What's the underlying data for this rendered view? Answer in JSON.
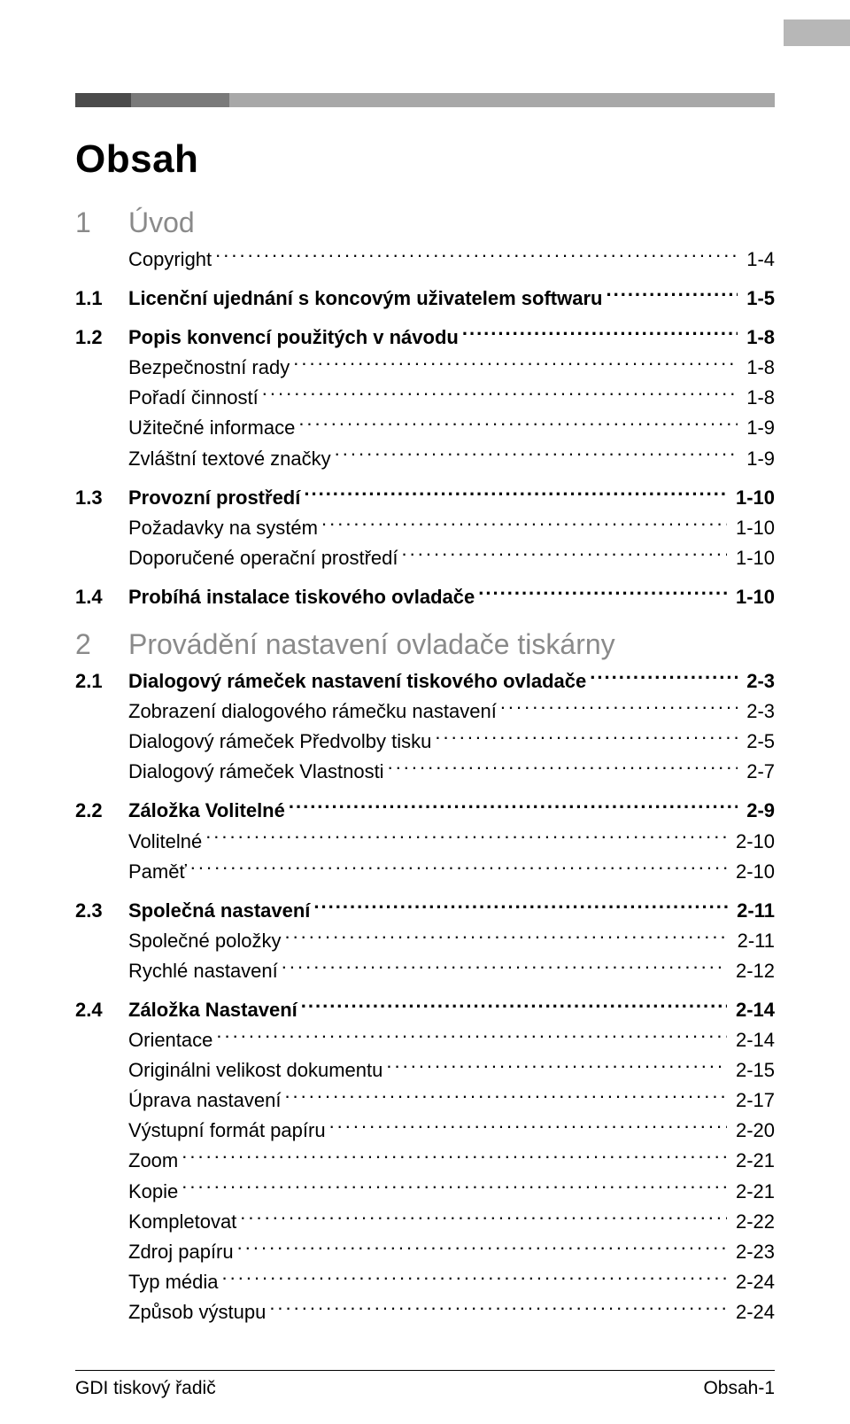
{
  "colors": {
    "background": "#ffffff",
    "text": "#000000",
    "chapter_gray": "#8a8a8a",
    "tab_gray": "#b7b7b7",
    "band_dark": "#4b4b4b",
    "band_mid": "#7a7a7a",
    "band_light": "#a8a8a8"
  },
  "typography": {
    "title_fontsize": 44,
    "chapter_fontsize": 32,
    "body_fontsize": 22,
    "footer_fontsize": 21,
    "font_family": "Arial"
  },
  "title": "Obsah",
  "chapters": [
    {
      "num": "1",
      "title": "Úvod",
      "entries": [
        {
          "level": "sub",
          "label": "Copyright",
          "page": "1-4"
        },
        {
          "level": "section",
          "num": "1.1",
          "label": "Licenční ujednání s koncovým uživatelem softwaru",
          "page": "1-5"
        },
        {
          "level": "section",
          "num": "1.2",
          "label": "Popis konvencí použitých v návodu",
          "page": "1-8"
        },
        {
          "level": "sub",
          "label": "Bezpečnostní rady",
          "page": "1-8"
        },
        {
          "level": "sub",
          "label": "Pořadí činností",
          "page": "1-8"
        },
        {
          "level": "sub",
          "label": "Užitečné informace",
          "page": "1-9"
        },
        {
          "level": "sub",
          "label": "Zvláštní textové značky",
          "page": "1-9"
        },
        {
          "level": "section",
          "num": "1.3",
          "label": "Provozní prostředí",
          "page": "1-10"
        },
        {
          "level": "sub",
          "label": "Požadavky na systém",
          "page": "1-10"
        },
        {
          "level": "sub",
          "label": "Doporučené operační prostředí",
          "page": "1-10"
        },
        {
          "level": "section",
          "num": "1.4",
          "label": "Probíhá instalace tiskového ovladače",
          "page": "1-10"
        }
      ]
    },
    {
      "num": "2",
      "title": "Provádění nastavení ovladače tiskárny",
      "entries": [
        {
          "level": "section",
          "num": "2.1",
          "label": "Dialogový rámeček nastavení tiskového ovladače",
          "page": "2-3"
        },
        {
          "level": "sub",
          "label": "Zobrazení dialogového rámečku nastavení",
          "page": "2-3"
        },
        {
          "level": "sub",
          "label": "Dialogový rámeček Předvolby tisku",
          "page": "2-5"
        },
        {
          "level": "sub",
          "label": "Dialogový rámeček Vlastnosti",
          "page": "2-7"
        },
        {
          "level": "section",
          "num": "2.2",
          "label": "Záložka Volitelné",
          "page": "2-9"
        },
        {
          "level": "sub",
          "label": "Volitelné",
          "page": "2-10"
        },
        {
          "level": "sub",
          "label": "Paměť",
          "page": "2-10"
        },
        {
          "level": "section",
          "num": "2.3",
          "label": "Společná nastavení",
          "page": "2-11"
        },
        {
          "level": "sub",
          "label": "Společné položky",
          "page": "2-11"
        },
        {
          "level": "sub",
          "label": "Rychlé nastavení",
          "page": "2-12"
        },
        {
          "level": "section",
          "num": "2.4",
          "label": "Záložka Nastavení",
          "page": "2-14"
        },
        {
          "level": "sub",
          "label": "Orientace",
          "page": "2-14"
        },
        {
          "level": "sub",
          "label": "Originálni velikost dokumentu",
          "page": "2-15"
        },
        {
          "level": "sub",
          "label": "Úprava nastavení",
          "page": "2-17"
        },
        {
          "level": "sub",
          "label": "Výstupní formát papíru",
          "page": "2-20"
        },
        {
          "level": "sub",
          "label": "Zoom",
          "page": "2-21"
        },
        {
          "level": "sub",
          "label": "Kopie",
          "page": "2-21"
        },
        {
          "level": "sub",
          "label": "Kompletovat",
          "page": "2-22"
        },
        {
          "level": "sub",
          "label": "Zdroj papíru",
          "page": "2-23"
        },
        {
          "level": "sub",
          "label": "Typ média",
          "page": "2-24"
        },
        {
          "level": "sub",
          "label": "Způsob výstupu",
          "page": "2-24"
        }
      ]
    }
  ],
  "footer": {
    "left": "GDI tiskový řadič",
    "right": "Obsah-1"
  }
}
